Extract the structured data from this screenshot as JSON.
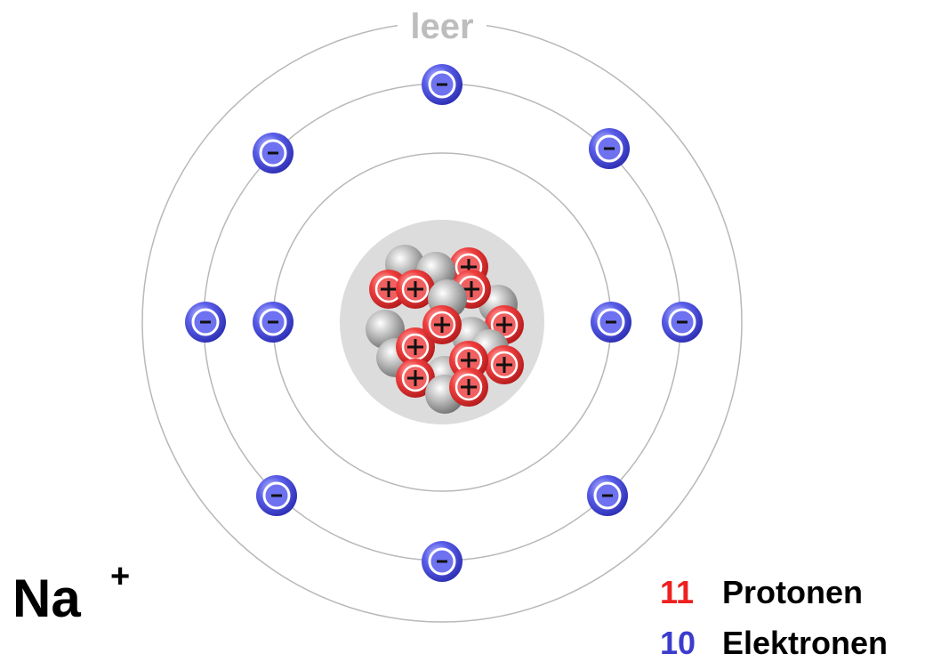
{
  "shell_label": "leer",
  "ion": {
    "symbol": "Na",
    "charge": "+"
  },
  "legend": [
    {
      "count": 11,
      "label": "Protonen"
    },
    {
      "count": 10,
      "label": "Elektronen"
    }
  ]
}
